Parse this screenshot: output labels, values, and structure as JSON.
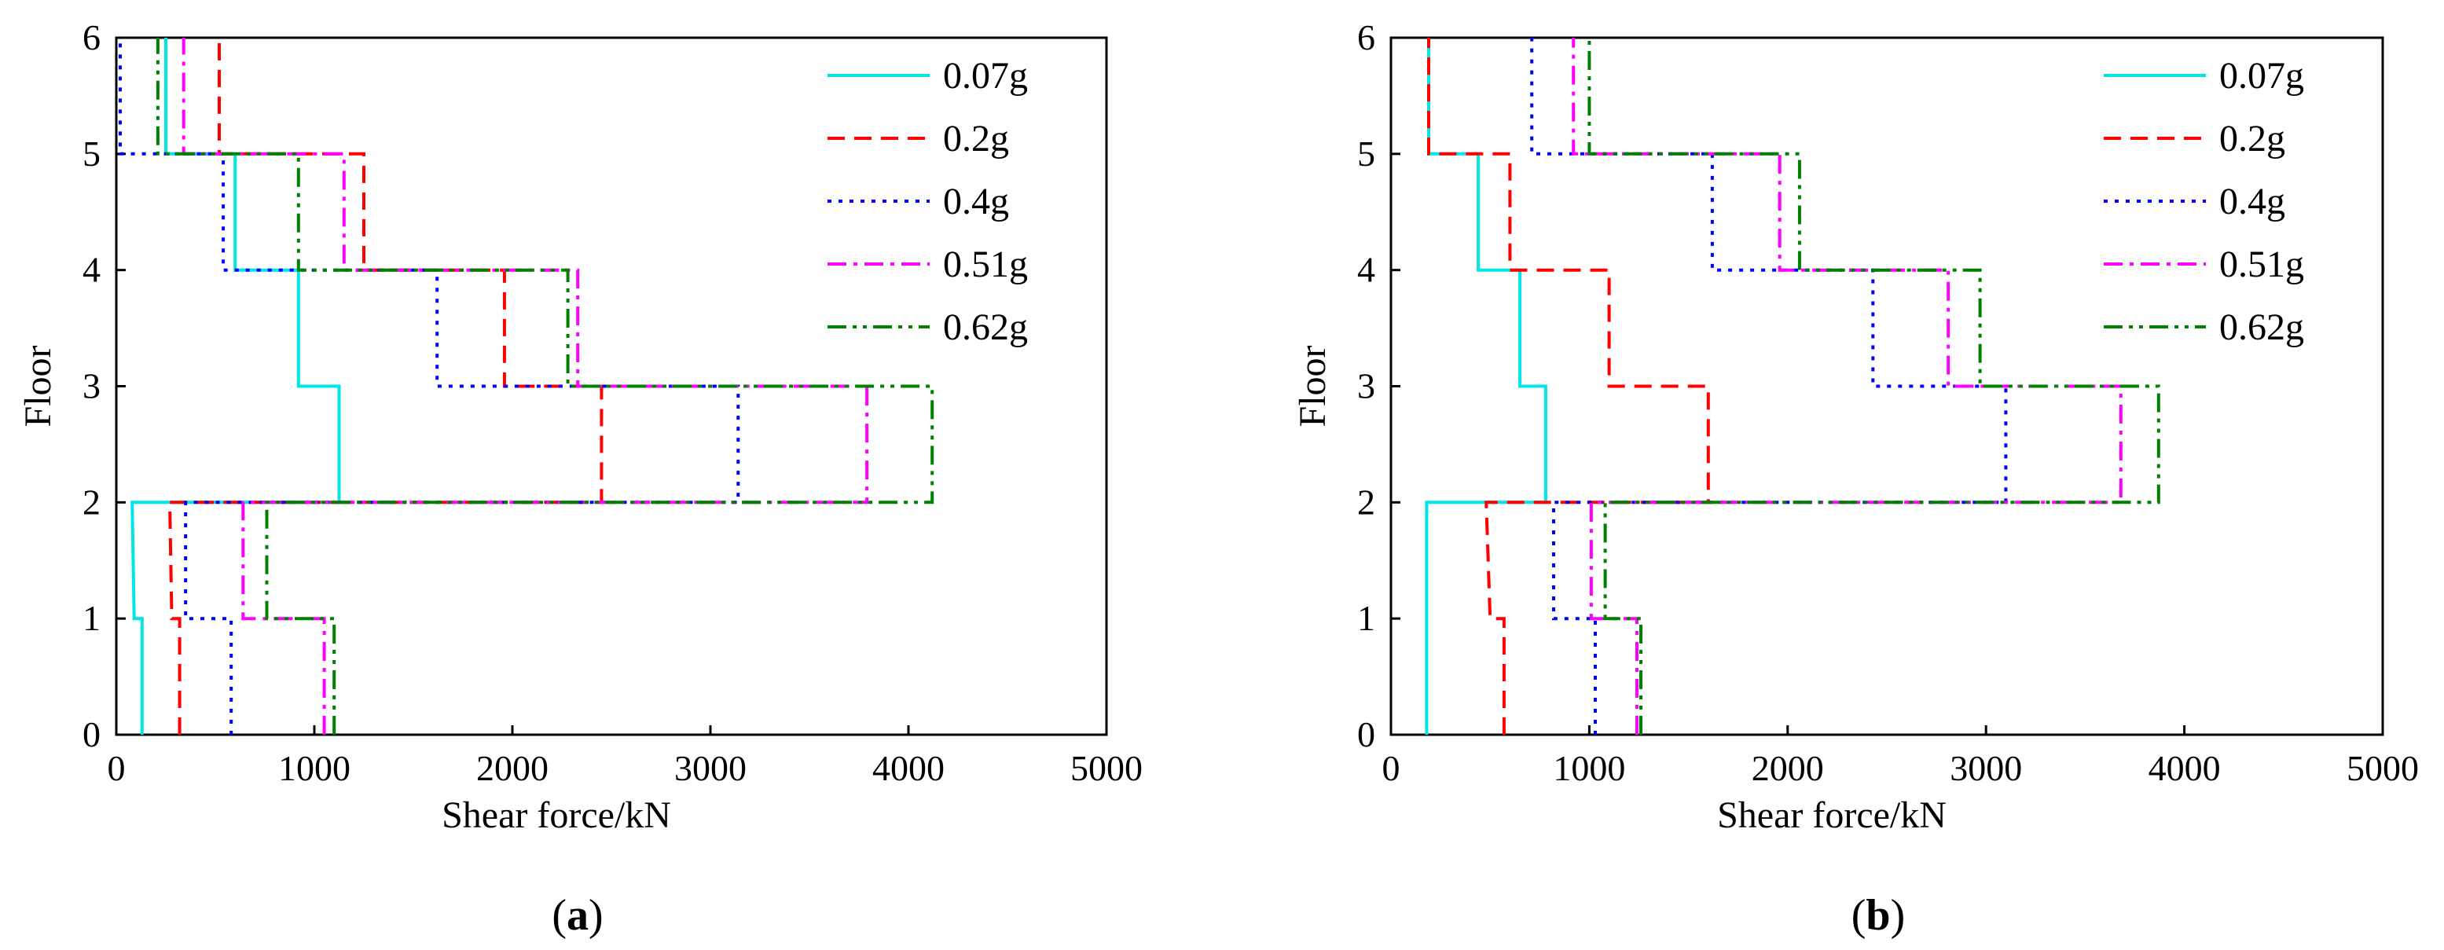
{
  "chart_data": [
    {
      "type": "line",
      "panel_label": "(a)",
      "panel_letter": "a",
      "xlabel": "Shear force/kN",
      "ylabel": "Floor",
      "xlim": [
        0,
        5000
      ],
      "ylim": [
        0,
        6
      ],
      "xticks": [
        "0",
        "1000",
        "2000",
        "3000",
        "4000",
        "5000"
      ],
      "yticks": [
        "0",
        "1",
        "2",
        "3",
        "4",
        "5",
        "6"
      ],
      "grid": false,
      "legend_position": "top-right",
      "series": [
        {
          "name": "0.07g",
          "color": "#00E5E5",
          "dash": "solid",
          "points": [
            [
              130,
              0
            ],
            [
              130,
              1
            ],
            [
              90,
              1
            ],
            [
              80,
              2
            ],
            [
              1125,
              2
            ],
            [
              1125,
              3
            ],
            [
              920,
              3
            ],
            [
              920,
              4
            ],
            [
              600,
              4
            ],
            [
              600,
              5
            ],
            [
              250,
              5
            ],
            [
              250,
              6
            ]
          ]
        },
        {
          "name": "0.2g",
          "color": "#FF0000",
          "dash": "dash",
          "points": [
            [
              320,
              0
            ],
            [
              320,
              1
            ],
            [
              280,
              1
            ],
            [
              270,
              2
            ],
            [
              2450,
              2
            ],
            [
              2450,
              3
            ],
            [
              1960,
              3
            ],
            [
              1960,
              4
            ],
            [
              1250,
              4
            ],
            [
              1250,
              5
            ],
            [
              520,
              5
            ],
            [
              520,
              6
            ]
          ]
        },
        {
          "name": "0.4g",
          "color": "#0000FF",
          "dash": "dot",
          "points": [
            [
              580,
              0
            ],
            [
              580,
              1
            ],
            [
              350,
              1
            ],
            [
              350,
              2
            ],
            [
              3140,
              2
            ],
            [
              3140,
              3
            ],
            [
              1620,
              3
            ],
            [
              1620,
              4
            ],
            [
              540,
              4
            ],
            [
              540,
              5
            ],
            [
              20,
              5
            ],
            [
              20,
              6
            ]
          ]
        },
        {
          "name": "0.51g",
          "color": "#FF00FF",
          "dash": "dashdot",
          "points": [
            [
              1050,
              0
            ],
            [
              1050,
              1
            ],
            [
              640,
              1
            ],
            [
              640,
              2
            ],
            [
              3790,
              2
            ],
            [
              3790,
              3
            ],
            [
              2330,
              3
            ],
            [
              2330,
              4
            ],
            [
              1150,
              4
            ],
            [
              1150,
              5
            ],
            [
              340,
              5
            ],
            [
              340,
              6
            ]
          ]
        },
        {
          "name": "0.62g",
          "color": "#008000",
          "dash": "dashdotdot",
          "points": [
            [
              1100,
              0
            ],
            [
              1100,
              1
            ],
            [
              760,
              1
            ],
            [
              760,
              2
            ],
            [
              4120,
              2
            ],
            [
              4120,
              3
            ],
            [
              2280,
              3
            ],
            [
              2280,
              4
            ],
            [
              920,
              4
            ],
            [
              920,
              5
            ],
            [
              210,
              5
            ],
            [
              210,
              6
            ]
          ]
        }
      ]
    },
    {
      "type": "line",
      "panel_label": "(b)",
      "panel_letter": "b",
      "xlabel": "Shear force/kN",
      "ylabel": "Floor",
      "xlim": [
        0,
        5000
      ],
      "ylim": [
        0,
        6
      ],
      "xticks": [
        "0",
        "1000",
        "2000",
        "3000",
        "4000",
        "5000"
      ],
      "yticks": [
        "0",
        "1",
        "2",
        "3",
        "4",
        "5",
        "6"
      ],
      "grid": false,
      "legend_position": "top-right",
      "series": [
        {
          "name": "0.07g",
          "color": "#00E5E5",
          "dash": "solid",
          "points": [
            [
              180,
              0
            ],
            [
              180,
              2
            ],
            [
              780,
              2
            ],
            [
              780,
              3
            ],
            [
              650,
              3
            ],
            [
              650,
              4
            ],
            [
              440,
              4
            ],
            [
              440,
              5
            ],
            [
              190,
              5
            ],
            [
              190,
              6
            ]
          ]
        },
        {
          "name": "0.2g",
          "color": "#FF0000",
          "dash": "dash",
          "points": [
            [
              570,
              0
            ],
            [
              570,
              1
            ],
            [
              500,
              1
            ],
            [
              480,
              2
            ],
            [
              1600,
              2
            ],
            [
              1600,
              3
            ],
            [
              1100,
              3
            ],
            [
              1100,
              4
            ],
            [
              600,
              4
            ],
            [
              600,
              5
            ],
            [
              190,
              5
            ],
            [
              190,
              6
            ]
          ]
        },
        {
          "name": "0.4g",
          "color": "#0000FF",
          "dash": "dot",
          "points": [
            [
              1030,
              0
            ],
            [
              1030,
              1
            ],
            [
              820,
              1
            ],
            [
              820,
              2
            ],
            [
              3100,
              2
            ],
            [
              3100,
              3
            ],
            [
              2430,
              3
            ],
            [
              2430,
              4
            ],
            [
              1620,
              4
            ],
            [
              1620,
              5
            ],
            [
              710,
              5
            ],
            [
              710,
              6
            ]
          ]
        },
        {
          "name": "0.51g",
          "color": "#FF00FF",
          "dash": "dashdot",
          "points": [
            [
              1240,
              0
            ],
            [
              1240,
              1
            ],
            [
              1010,
              1
            ],
            [
              1010,
              2
            ],
            [
              3680,
              2
            ],
            [
              3680,
              3
            ],
            [
              2810,
              3
            ],
            [
              2810,
              4
            ],
            [
              1960,
              4
            ],
            [
              1960,
              5
            ],
            [
              920,
              5
            ],
            [
              920,
              6
            ]
          ]
        },
        {
          "name": "0.62g",
          "color": "#008000",
          "dash": "dashdotdot",
          "points": [
            [
              1260,
              0
            ],
            [
              1260,
              1
            ],
            [
              1080,
              1
            ],
            [
              1080,
              2
            ],
            [
              3870,
              2
            ],
            [
              3870,
              3
            ],
            [
              2970,
              3
            ],
            [
              2970,
              4
            ],
            [
              2060,
              4
            ],
            [
              2060,
              5
            ],
            [
              1000,
              5
            ],
            [
              1000,
              6
            ]
          ]
        }
      ]
    }
  ]
}
